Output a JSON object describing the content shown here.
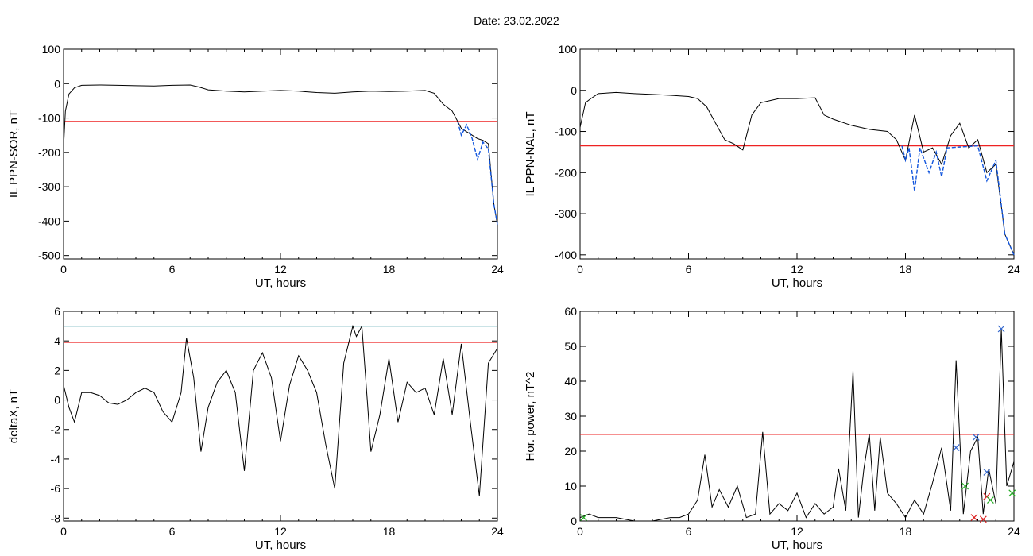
{
  "page": {
    "title": "Date:  23.02.2022"
  },
  "colors": {
    "axis": "#000000",
    "trace": "#000000",
    "threshold_red": "#ee2222",
    "threshold_teal": "#2a8f9a",
    "highlight_blue": "#1155dd",
    "marker_blue": "#3366cc",
    "marker_red": "#dd2222",
    "marker_green": "#22aa22"
  },
  "chart_data": [
    {
      "id": "sor",
      "type": "line",
      "xlabel": "UT, hours",
      "ylabel": "IL PPN-SOR, nT",
      "xlim": [
        0,
        24
      ],
      "ylim": [
        -510,
        100
      ],
      "xticks": [
        0,
        6,
        12,
        18,
        24
      ],
      "yticks": [
        100,
        0,
        -100,
        -200,
        -300,
        -400,
        -500
      ],
      "thresholds": [
        {
          "y": -110,
          "color": "red"
        }
      ],
      "series": [
        {
          "x": [
            0,
            0.1,
            0.3,
            0.6,
            1,
            2,
            3,
            4,
            5,
            6,
            7,
            7.5,
            8,
            9,
            10,
            11,
            12,
            13,
            14,
            15,
            16,
            17,
            18,
            19,
            20,
            20.5,
            21,
            21.5,
            21.8,
            22,
            22.3,
            22.6,
            22.9,
            23.2,
            23.5,
            23.8,
            24
          ],
          "y": [
            -185,
            -80,
            -30,
            -12,
            -5,
            -4,
            -5,
            -6,
            -7,
            -5,
            -4,
            -10,
            -18,
            -22,
            -24,
            -22,
            -20,
            -22,
            -26,
            -28,
            -24,
            -22,
            -23,
            -22,
            -20,
            -28,
            -60,
            -80,
            -110,
            -130,
            -140,
            -150,
            -160,
            -165,
            -175,
            -350,
            -410
          ]
        },
        {
          "name": "below-threshold",
          "x": [
            21.8,
            22,
            22.3,
            22.6,
            22.9,
            23.2,
            23.5,
            23.8,
            24
          ],
          "y": [
            -110,
            -150,
            -120,
            -160,
            -220,
            -170,
            -190,
            -350,
            -410
          ]
        }
      ]
    },
    {
      "id": "nal",
      "type": "line",
      "xlabel": "UT, hours",
      "ylabel": "IL PPN-NAL, nT",
      "xlim": [
        0,
        24
      ],
      "ylim": [
        -410,
        100
      ],
      "xticks": [
        0,
        6,
        12,
        18,
        24
      ],
      "yticks": [
        100,
        0,
        -100,
        -200,
        -300,
        -400
      ],
      "thresholds": [
        {
          "y": -135,
          "color": "red"
        }
      ],
      "series": [
        {
          "x": [
            0,
            0.3,
            0.6,
            1,
            2,
            3,
            4,
            5,
            6,
            6.5,
            7,
            7.5,
            8,
            8.5,
            9,
            9.5,
            10,
            11,
            12,
            13,
            13.5,
            14,
            15,
            16,
            17,
            17.5,
            18,
            18.5,
            19,
            19.5,
            20,
            20.5,
            21,
            21.5,
            22,
            22.5,
            23,
            23.5,
            24
          ],
          "y": [
            -90,
            -30,
            -20,
            -8,
            -5,
            -8,
            -10,
            -12,
            -15,
            -20,
            -40,
            -80,
            -120,
            -130,
            -145,
            -60,
            -30,
            -20,
            -20,
            -18,
            -60,
            -70,
            -85,
            -95,
            -100,
            -120,
            -170,
            -60,
            -150,
            -140,
            -180,
            -110,
            -80,
            -140,
            -120,
            -200,
            -180,
            -350,
            -400
          ]
        },
        {
          "name": "below-threshold",
          "x": [
            17.8,
            18,
            18.2,
            18.5,
            18.8,
            19.3,
            19.7,
            20,
            20.3,
            22,
            22.5,
            23,
            23.5,
            24
          ],
          "y": [
            -135,
            -170,
            -140,
            -245,
            -140,
            -200,
            -150,
            -210,
            -140,
            -135,
            -220,
            -170,
            -350,
            -400
          ]
        }
      ]
    },
    {
      "id": "deltax",
      "type": "line",
      "xlabel": "UT, hours",
      "ylabel": "deltaX, nT",
      "xlim": [
        0,
        24
      ],
      "ylim": [
        -8.2,
        6
      ],
      "xticks": [
        0,
        6,
        12,
        18,
        24
      ],
      "yticks": [
        6,
        4,
        2,
        0,
        -2,
        -4,
        -6,
        -8
      ],
      "thresholds": [
        {
          "y": 5.0,
          "color": "teal"
        },
        {
          "y": 3.9,
          "color": "red"
        }
      ],
      "series": [
        {
          "x": [
            0,
            0.3,
            0.6,
            1,
            1.5,
            2,
            2.5,
            3,
            3.5,
            4,
            4.5,
            5,
            5.5,
            6,
            6.5,
            6.8,
            7.2,
            7.6,
            8,
            8.5,
            9,
            9.5,
            10,
            10.5,
            11,
            11.5,
            12,
            12.5,
            13,
            13.5,
            14,
            14.5,
            15,
            15.5,
            16,
            16.2,
            16.5,
            16.8,
            17,
            17.5,
            18,
            18.5,
            19,
            19.5,
            20,
            20.5,
            21,
            21.5,
            22,
            22.5,
            23,
            23.5,
            24
          ],
          "y": [
            1,
            -0.5,
            -1.5,
            0.5,
            0.5,
            0.3,
            -0.2,
            -0.3,
            0,
            0.5,
            0.8,
            0.5,
            -0.8,
            -1.5,
            0.5,
            4.2,
            1.5,
            -3.5,
            -0.5,
            1.2,
            2,
            0.5,
            -4.8,
            2,
            3.2,
            1.5,
            -2.8,
            1,
            3,
            2,
            0.5,
            -3,
            -6,
            2.5,
            5,
            4.3,
            5,
            0,
            -3.5,
            -1,
            2.8,
            -1.5,
            1.2,
            0.5,
            0.8,
            -1,
            2.8,
            -1,
            3.8,
            -1.5,
            -6.5,
            2.5,
            3.5
          ]
        }
      ]
    },
    {
      "id": "hpower",
      "type": "line",
      "xlabel": "UT, hours",
      "ylabel": "Hor. power, nT^2",
      "xlim": [
        0,
        24
      ],
      "ylim": [
        0,
        60
      ],
      "xticks": [
        0,
        6,
        12,
        18,
        24
      ],
      "yticks": [
        60,
        50,
        40,
        30,
        20,
        10,
        0
      ],
      "thresholds": [
        {
          "y": 24.8,
          "color": "red"
        }
      ],
      "series": [
        {
          "x": [
            0,
            0.5,
            1,
            2,
            3,
            4,
            5,
            5.5,
            6,
            6.5,
            6.9,
            7.3,
            7.7,
            8.2,
            8.7,
            9.2,
            9.7,
            10.1,
            10.5,
            11,
            11.5,
            12,
            12.5,
            13,
            13.5,
            14,
            14.3,
            14.7,
            15.1,
            15.4,
            15.7,
            16,
            16.3,
            16.6,
            17,
            17.5,
            18,
            18.5,
            19,
            19.5,
            20,
            20.5,
            20.8,
            21.2,
            21.6,
            22,
            22.3,
            22.6,
            23,
            23.3,
            23.6,
            24
          ],
          "y": [
            1,
            2,
            1,
            1,
            0,
            0,
            1,
            1,
            2,
            6,
            19,
            4,
            9,
            4,
            10,
            1,
            2,
            25.5,
            2,
            5,
            3,
            8,
            1,
            5,
            2,
            4,
            15,
            3,
            43,
            1,
            15,
            25,
            3,
            24,
            8,
            5,
            1,
            6,
            2,
            11,
            21,
            3,
            46,
            2,
            20,
            24,
            2,
            15,
            5,
            55,
            10,
            17
          ]
        }
      ],
      "markers": [
        {
          "x": 20.8,
          "y": 21,
          "color": "blue",
          "symbol": "x"
        },
        {
          "x": 21.9,
          "y": 24,
          "color": "blue",
          "symbol": "x"
        },
        {
          "x": 22.5,
          "y": 14,
          "color": "blue",
          "symbol": "x"
        },
        {
          "x": 23.3,
          "y": 55,
          "color": "blue",
          "symbol": "x"
        },
        {
          "x": 21.8,
          "y": 1,
          "color": "red",
          "symbol": "x"
        },
        {
          "x": 22.3,
          "y": 0.5,
          "color": "red",
          "symbol": "x"
        },
        {
          "x": 22.5,
          "y": 7,
          "color": "red",
          "symbol": "x"
        },
        {
          "x": 21.3,
          "y": 10,
          "color": "green",
          "symbol": "x"
        },
        {
          "x": 22.7,
          "y": 6,
          "color": "green",
          "symbol": "x"
        },
        {
          "x": 0.2,
          "y": 1,
          "color": "green",
          "symbol": "x"
        },
        {
          "x": 23.9,
          "y": 8,
          "color": "green",
          "symbol": "x"
        }
      ]
    }
  ]
}
